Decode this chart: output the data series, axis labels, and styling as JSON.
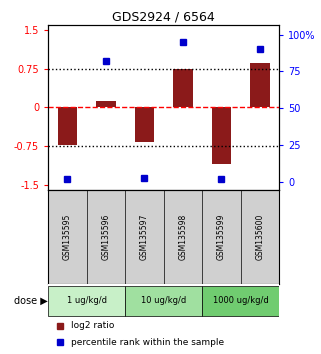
{
  "title": "GDS2924 / 6564",
  "samples": [
    "GSM135595",
    "GSM135596",
    "GSM135597",
    "GSM135598",
    "GSM135599",
    "GSM135600"
  ],
  "log2_ratio": [
    -0.72,
    0.12,
    -0.68,
    0.75,
    -1.1,
    0.85
  ],
  "percentile_rank": [
    2,
    82,
    3,
    95,
    2,
    90
  ],
  "bar_color": "#8B1A1A",
  "dot_color": "#0000CC",
  "ylim_left": [
    -1.6,
    1.6
  ],
  "yticks_left": [
    -1.5,
    -0.75,
    0,
    0.75,
    1.5
  ],
  "ytick_labels_left": [
    "-1.5",
    "-0.75",
    "0",
    "0.75",
    "1.5"
  ],
  "ylim_right": [
    -5.33,
    106.67
  ],
  "yticks_right": [
    0,
    25,
    50,
    75,
    100
  ],
  "ytick_labels_right": [
    "0",
    "25",
    "50",
    "75",
    "100%"
  ],
  "hlines": [
    0.75,
    0,
    -0.75
  ],
  "hline_styles": [
    "dotted",
    "dashed",
    "dotted"
  ],
  "hline_colors": [
    "black",
    "red",
    "black"
  ],
  "dose_groups": [
    {
      "label": "1 ug/kg/d",
      "samples": [
        0,
        1
      ],
      "color": "#c8f0c8"
    },
    {
      "label": "10 ug/kg/d",
      "samples": [
        2,
        3
      ],
      "color": "#a0e0a0"
    },
    {
      "label": "1000 ug/kg/d",
      "samples": [
        4,
        5
      ],
      "color": "#70cc70"
    }
  ],
  "dose_label": "dose",
  "legend_bar_label": "log2 ratio",
  "legend_dot_label": "percentile rank within the sample",
  "bg_color": "#ffffff",
  "plot_bg_color": "#ffffff"
}
